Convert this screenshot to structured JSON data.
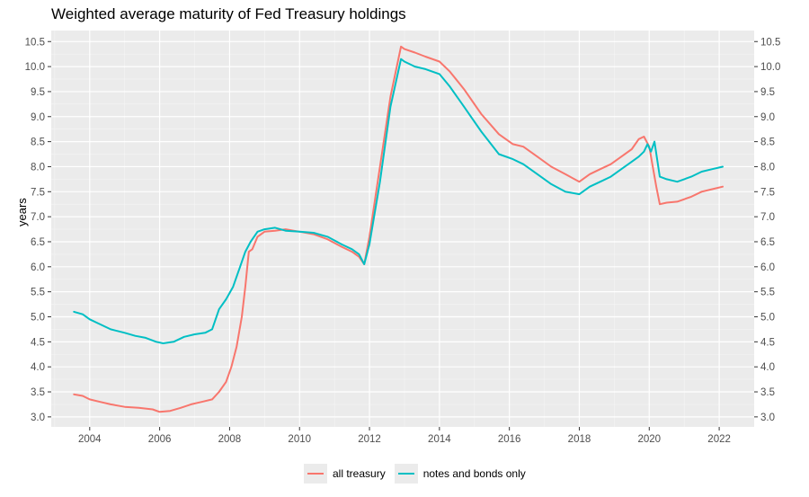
{
  "chart_data": {
    "type": "line",
    "title": "Weighted average maturity of Fed Treasury holdings",
    "xlabel": "",
    "ylabel": "years",
    "xlim": [
      2002.9,
      2023.0
    ],
    "ylim": [
      2.8,
      10.72
    ],
    "x_ticks": [
      2004,
      2006,
      2008,
      2010,
      2012,
      2014,
      2016,
      2018,
      2020,
      2022
    ],
    "y_ticks": [
      3.0,
      3.5,
      4.0,
      4.5,
      5.0,
      5.5,
      6.0,
      6.5,
      7.0,
      7.5,
      8.0,
      8.5,
      9.0,
      9.5,
      10.0,
      10.5
    ],
    "y_tick_labels": [
      "3.0",
      "3.5",
      "4.0",
      "4.5",
      "5.0",
      "5.5",
      "6.0",
      "6.5",
      "7.0",
      "7.5",
      "8.0",
      "8.5",
      "9.0",
      "9.5",
      "10.0",
      "10.5"
    ],
    "grid": true,
    "secondary_y_axis": true,
    "legend_position": "bottom",
    "series": [
      {
        "name": "all treasury",
        "color": "#F8766D",
        "x": [
          2003.55,
          2003.8,
          2004.0,
          2004.3,
          2004.6,
          2005.0,
          2005.4,
          2005.8,
          2006.0,
          2006.3,
          2006.6,
          2006.9,
          2007.2,
          2007.5,
          2007.7,
          2007.9,
          2008.05,
          2008.2,
          2008.35,
          2008.45,
          2008.55,
          2008.65,
          2008.8,
          2009.0,
          2009.3,
          2009.6,
          2010.0,
          2010.4,
          2010.8,
          2011.2,
          2011.5,
          2011.7,
          2011.85,
          2012.0,
          2012.3,
          2012.6,
          2012.9,
          2013.0,
          2013.3,
          2013.6,
          2014.0,
          2014.3,
          2014.7,
          2015.2,
          2015.7,
          2016.1,
          2016.4,
          2016.8,
          2017.2,
          2017.6,
          2018.0,
          2018.3,
          2018.6,
          2018.9,
          2019.2,
          2019.5,
          2019.7,
          2019.85,
          2020.0,
          2020.1,
          2020.2,
          2020.3,
          2020.5,
          2020.8,
          2021.2,
          2021.5,
          2021.8,
          2022.1
        ],
        "values": [
          3.45,
          3.42,
          3.35,
          3.3,
          3.25,
          3.2,
          3.18,
          3.15,
          3.1,
          3.12,
          3.18,
          3.25,
          3.3,
          3.35,
          3.5,
          3.7,
          4.0,
          4.4,
          5.0,
          5.6,
          6.3,
          6.35,
          6.6,
          6.7,
          6.72,
          6.75,
          6.7,
          6.65,
          6.55,
          6.4,
          6.3,
          6.2,
          6.05,
          6.6,
          8.0,
          9.4,
          10.4,
          10.35,
          10.28,
          10.2,
          10.1,
          9.9,
          9.55,
          9.05,
          8.65,
          8.45,
          8.4,
          8.2,
          8.0,
          7.85,
          7.7,
          7.85,
          7.95,
          8.05,
          8.2,
          8.35,
          8.55,
          8.6,
          8.4,
          8.0,
          7.6,
          7.25,
          7.28,
          7.3,
          7.4,
          7.5,
          7.55,
          7.6
        ]
      },
      {
        "name": "notes and bonds only",
        "color": "#00BFC4",
        "x": [
          2003.55,
          2003.8,
          2004.0,
          2004.3,
          2004.6,
          2005.0,
          2005.3,
          2005.6,
          2005.9,
          2006.1,
          2006.4,
          2006.7,
          2007.0,
          2007.3,
          2007.5,
          2007.7,
          2007.9,
          2008.1,
          2008.3,
          2008.45,
          2008.6,
          2008.8,
          2009.0,
          2009.3,
          2009.6,
          2010.0,
          2010.4,
          2010.8,
          2011.2,
          2011.5,
          2011.7,
          2011.85,
          2012.0,
          2012.3,
          2012.6,
          2012.9,
          2013.0,
          2013.3,
          2013.6,
          2014.0,
          2014.3,
          2014.7,
          2015.2,
          2015.7,
          2016.1,
          2016.4,
          2016.8,
          2017.2,
          2017.6,
          2018.0,
          2018.3,
          2018.6,
          2018.9,
          2019.2,
          2019.5,
          2019.7,
          2019.85,
          2019.95,
          2020.05,
          2020.15,
          2020.3,
          2020.5,
          2020.8,
          2021.2,
          2021.5,
          2021.8,
          2022.1
        ],
        "values": [
          5.1,
          5.05,
          4.95,
          4.85,
          4.75,
          4.68,
          4.62,
          4.58,
          4.5,
          4.47,
          4.5,
          4.6,
          4.65,
          4.68,
          4.75,
          5.15,
          5.35,
          5.6,
          6.0,
          6.3,
          6.5,
          6.7,
          6.75,
          6.78,
          6.72,
          6.7,
          6.68,
          6.6,
          6.45,
          6.35,
          6.25,
          6.05,
          6.45,
          7.7,
          9.2,
          10.15,
          10.1,
          10.0,
          9.95,
          9.85,
          9.6,
          9.2,
          8.7,
          8.25,
          8.15,
          8.05,
          7.85,
          7.65,
          7.5,
          7.45,
          7.6,
          7.7,
          7.8,
          7.95,
          8.1,
          8.2,
          8.3,
          8.45,
          8.3,
          8.5,
          7.8,
          7.75,
          7.7,
          7.8,
          7.9,
          7.95,
          8.0
        ]
      }
    ]
  }
}
